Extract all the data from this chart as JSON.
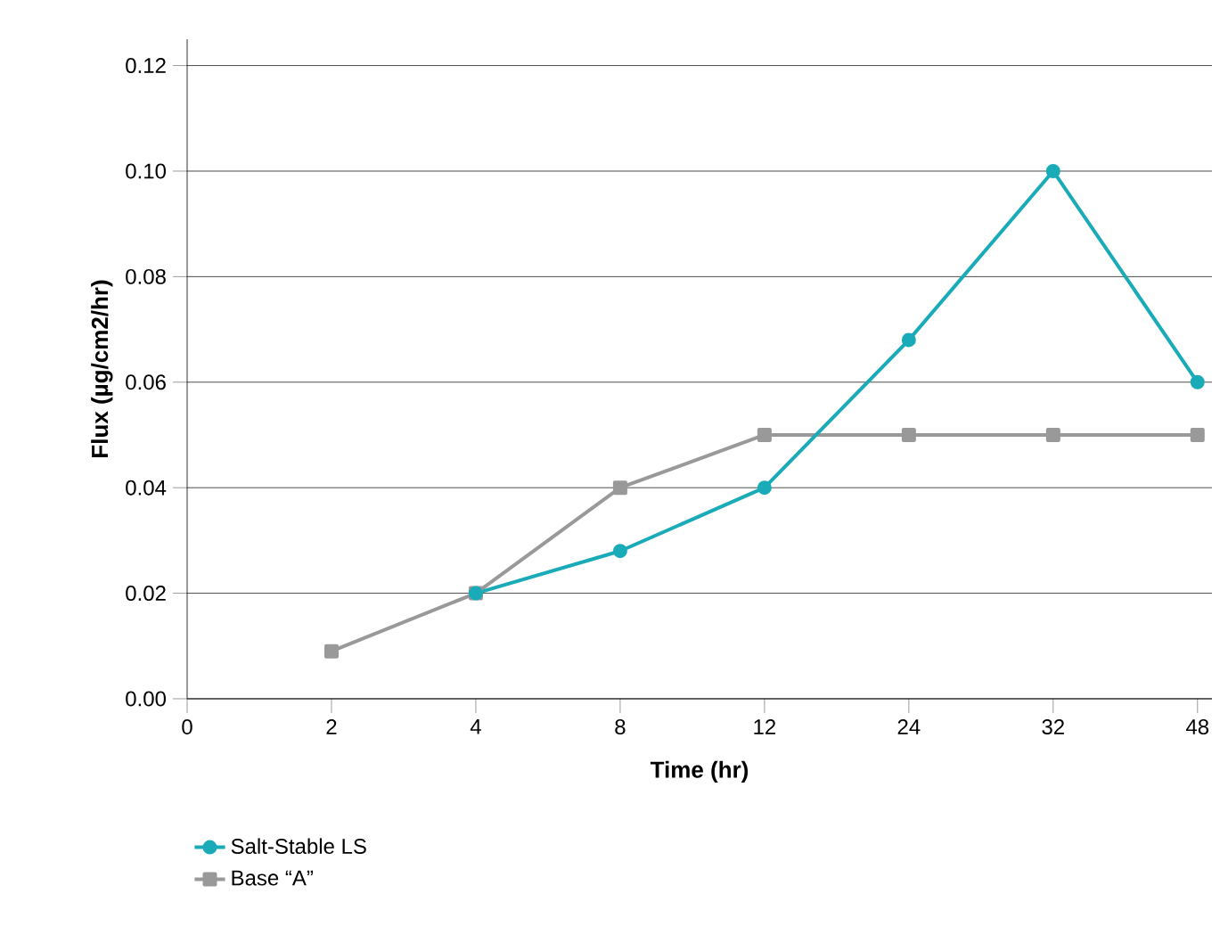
{
  "chart_data": {
    "type": "line",
    "xlabel": "Time (hr)",
    "ylabel": "Flux (µg/cm2/hr)",
    "categories": [
      "0",
      "2",
      "4",
      "8",
      "12",
      "24",
      "32",
      "48"
    ],
    "series": [
      {
        "name": "Salt-Stable LS",
        "color": "#1aabb8",
        "marker": "circle",
        "values": [
          null,
          null,
          0.02,
          0.028,
          0.04,
          0.068,
          0.1,
          0.06
        ]
      },
      {
        "name": "Base “A”",
        "color": "#999999",
        "marker": "square",
        "values": [
          null,
          0.009,
          0.02,
          0.04,
          0.05,
          0.05,
          0.05,
          0.05
        ]
      }
    ],
    "ylim": [
      0,
      0.125
    ],
    "yticks": [
      {
        "value": 0,
        "label": "0.00"
      },
      {
        "value": 0.02,
        "label": "0.02"
      },
      {
        "value": 0.04,
        "label": "0.04"
      },
      {
        "value": 0.06,
        "label": "0.06"
      },
      {
        "value": 0.08,
        "label": "0.08"
      },
      {
        "value": 0.1,
        "label": "0.10"
      },
      {
        "value": 0.12,
        "label": "0.12"
      }
    ],
    "grid": "y",
    "legend": "bottom left",
    "line_style": "solid"
  }
}
